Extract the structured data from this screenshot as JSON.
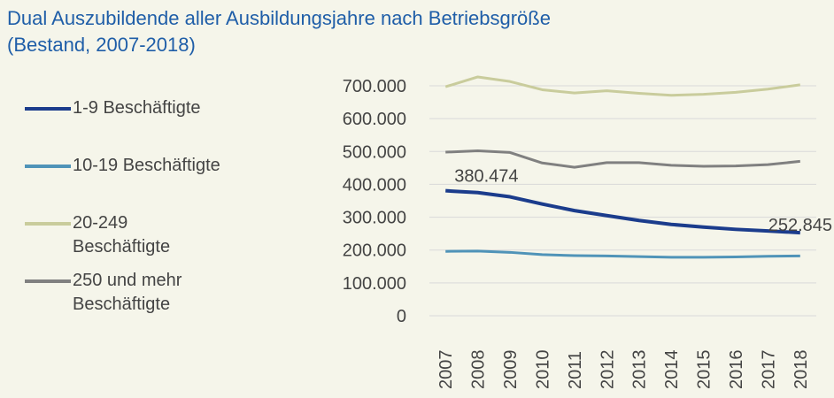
{
  "chart_data": {
    "type": "line",
    "title": "Dual Auszubildende aller Ausbildungsjahre nach Betriebsgröße",
    "subtitle": "(Bestand, 2007-2018)",
    "categories": [
      "2007",
      "2008",
      "2009",
      "2010",
      "2011",
      "2012",
      "2013",
      "2014",
      "2015",
      "2016",
      "2017",
      "2018"
    ],
    "series": [
      {
        "name": "1-9 Beschäftigte",
        "color": "#1b3c8c",
        "values": [
          380474,
          375000,
          362000,
          340000,
          320000,
          305000,
          290000,
          278000,
          270000,
          263000,
          258000,
          252845
        ],
        "value_labels": [
          "380.474",
          null,
          null,
          null,
          null,
          null,
          null,
          null,
          null,
          null,
          null,
          "252.845"
        ]
      },
      {
        "name": "10-19 Beschäftigte",
        "color": "#4f93b8",
        "values": [
          196000,
          197000,
          193000,
          186000,
          183000,
          182000,
          180000,
          178000,
          178000,
          179000,
          181000,
          182000
        ]
      },
      {
        "name": "20-249 Beschäftigte",
        "color": "#c9cc9c",
        "values": [
          697000,
          727000,
          713000,
          688000,
          678000,
          685000,
          677000,
          671000,
          674000,
          680000,
          690000,
          703000
        ]
      },
      {
        "name": "250 und mehr Beschäftigte",
        "color": "#808080",
        "values": [
          498000,
          502000,
          497000,
          465000,
          452000,
          466000,
          466000,
          458000,
          455000,
          456000,
          460000,
          470000
        ]
      }
    ],
    "ylim": [
      0,
      700000
    ],
    "yticks": [
      0,
      {
        "value": 100000,
        "label": "100.000"
      },
      {
        "value": 200000,
        "label": "200.000"
      },
      {
        "value": 300000,
        "label": "300.000"
      },
      {
        "value": 400000,
        "label": "400.000"
      },
      {
        "value": 500000,
        "label": "500.000"
      },
      {
        "value": 600000,
        "label": "600.000"
      },
      {
        "value": 700000,
        "label": "700.000"
      }
    ],
    "grid": true,
    "legend": "left"
  }
}
